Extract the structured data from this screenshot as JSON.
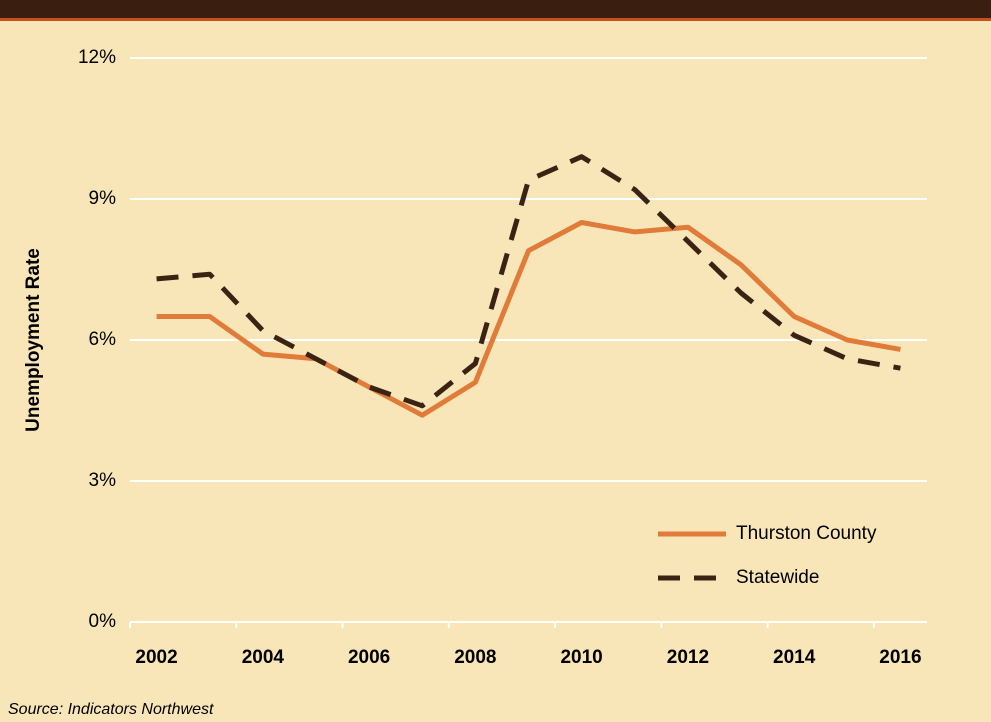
{
  "chart_data": {
    "type": "line",
    "ylabel": "Unemployment Rate",
    "source": "Source: Indicators Northwest",
    "categories": [
      "2002",
      null,
      "2004",
      null,
      "2006",
      null,
      "2008",
      null,
      "2010",
      null,
      "2012",
      null,
      "2014",
      null,
      "2016"
    ],
    "series": [
      {
        "name": "Thurston County",
        "color": "#e07b39",
        "dash": false,
        "values": [
          6.5,
          6.5,
          5.7,
          5.6,
          5.0,
          4.4,
          5.1,
          7.9,
          8.5,
          8.3,
          8.4,
          7.6,
          6.5,
          6.0,
          5.8
        ]
      },
      {
        "name": "Statewide",
        "color": "#3b2314",
        "dash": true,
        "values": [
          7.3,
          7.4,
          6.2,
          5.6,
          5.0,
          4.6,
          5.5,
          9.4,
          9.9,
          9.2,
          8.1,
          7.0,
          6.1,
          5.6,
          5.4
        ]
      }
    ],
    "ylim": [
      0,
      12
    ],
    "yticks": [
      {
        "value": 0,
        "label": "0%"
      },
      {
        "value": 3,
        "label": "3%"
      },
      {
        "value": 6,
        "label": "6%"
      },
      {
        "value": 9,
        "label": "9%"
      },
      {
        "value": 12,
        "label": "12%"
      }
    ],
    "grid": true,
    "legend": "lower right"
  }
}
